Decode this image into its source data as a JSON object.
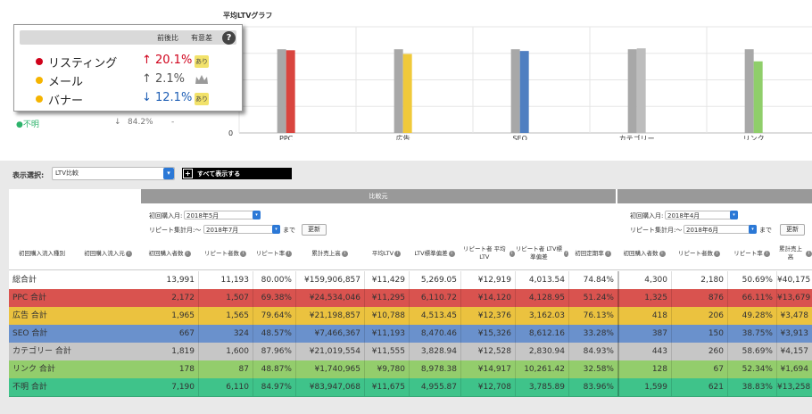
{
  "graph": {
    "title": "平均LTVグラフ",
    "y_ticks": [
      "0"
    ],
    "categories": [
      "PPC",
      "広告",
      "SEO",
      "カテゴリー",
      "リンク"
    ]
  },
  "chart_data": {
    "type": "bar",
    "categories": [
      "PPC",
      "広告",
      "SEO",
      "カテゴリー",
      "リンク"
    ],
    "series": [
      {
        "values": [
          11429,
          11429,
          11429,
          11429,
          11429
        ]
      },
      {
        "values": [
          11295,
          10788,
          11193,
          11555,
          9780
        ]
      }
    ],
    "bar_colors": [
      "#d9453f",
      "#f0c93a",
      "#4f7fc1",
      "#bdbdbd",
      "#8fce6a"
    ],
    "base_color": "#a8a8a8",
    "ylim": [
      0,
      14500
    ],
    "grid": true
  },
  "popup": {
    "col_prev": "前後比",
    "col_sig": "有意差",
    "help": "?",
    "rows": [
      {
        "label": "リスティング",
        "arrow": "↑",
        "value": "20.1%",
        "value_color": "#d0021b",
        "dot": "#d0021b",
        "badge": "あり",
        "icon": "crown-gold-icon"
      },
      {
        "label": "メール",
        "arrow": "↑",
        "value": "2.1%",
        "value_color": "#555555",
        "dot": "#f5b400",
        "badge": "",
        "icon": "crown-grey-icon"
      },
      {
        "label": "バナー",
        "arrow": "↓",
        "value": "12.1%",
        "value_color": "#1f5fb5",
        "dot": "#f5b400",
        "badge": "あり",
        "icon": "crown-gold-icon"
      }
    ]
  },
  "below_popup": {
    "label": "●不明",
    "arrow": "↓",
    "value": "84.2%",
    "sig": "-",
    "dot_color": "#2db36b"
  },
  "toolbar": {
    "label": "表示選択:",
    "select_value": "LTV比較",
    "show_all": "すべて表示する",
    "plus": "+"
  },
  "compare": {
    "header": "比較元",
    "first_purchase_label": "初回購入月:",
    "first_purchase_value": "2018年5月",
    "repeat_label": "リピート集計月:〜",
    "repeat_value": "2018年7月",
    "made": "まで",
    "update": "更新"
  },
  "compare2": {
    "first_purchase_label": "初回購入月:",
    "first_purchase_value": "2018年4月",
    "repeat_label": "リピート集計月:〜",
    "repeat_value": "2018年6月",
    "made": "まで",
    "update": "更新"
  },
  "columns": [
    {
      "label": "初回購入流入種別",
      "info": false
    },
    {
      "label": "初回購入流入元",
      "info": true
    },
    {
      "label": "初回購入者数",
      "info": true
    },
    {
      "label": "リピート者数",
      "info": true
    },
    {
      "label": "リピート率",
      "info": true
    },
    {
      "label": "累計売上高",
      "info": true
    },
    {
      "label": "平均LTV",
      "info": true
    },
    {
      "label": "LTV標準偏差",
      "info": true
    },
    {
      "label": "リピート者 平均LTV",
      "info": true
    },
    {
      "label": "リピート者 LTV標準偏差",
      "info": true
    },
    {
      "label": "初回定期率",
      "info": true
    },
    {
      "label": "初回購入者数",
      "info": true
    },
    {
      "label": "リピート者数",
      "info": true
    },
    {
      "label": "リピート率",
      "info": true
    },
    {
      "label": "累計売上高",
      "info": true
    }
  ],
  "rows": [
    {
      "label": "総合計",
      "color": "#ffffff",
      "values": [
        "13,991",
        "11,193",
        "80.00%",
        "¥159,906,857",
        "¥11,429",
        "5,269.05",
        "¥12,919",
        "4,013.54",
        "74.84%",
        "4,300",
        "2,180",
        "50.69%",
        "¥40,175"
      ]
    },
    {
      "label": "PPC 合計",
      "color": "#d9534f",
      "values": [
        "2,172",
        "1,507",
        "69.38%",
        "¥24,534,046",
        "¥11,295",
        "6,110.72",
        "¥14,120",
        "4,128.95",
        "51.24%",
        "1,325",
        "876",
        "66.11%",
        "¥13,679"
      ]
    },
    {
      "label": "広告 合計",
      "color": "#ebc23f",
      "values": [
        "1,965",
        "1,565",
        "79.64%",
        "¥21,198,857",
        "¥10,788",
        "4,513.45",
        "¥12,376",
        "3,162.03",
        "76.13%",
        "418",
        "206",
        "49.28%",
        "¥3,478"
      ]
    },
    {
      "label": "SEO 合計",
      "color": "#6a91cc",
      "values": [
        "667",
        "324",
        "48.57%",
        "¥7,466,367",
        "¥11,193",
        "8,470.46",
        "¥15,326",
        "8,612.16",
        "33.28%",
        "387",
        "150",
        "38.75%",
        "¥3,913"
      ]
    },
    {
      "label": "カテゴリー 合計",
      "color": "#c6c6c6",
      "values": [
        "1,819",
        "1,600",
        "87.96%",
        "¥21,019,554",
        "¥11,555",
        "3,828.94",
        "¥12,528",
        "2,830.94",
        "84.93%",
        "443",
        "260",
        "58.69%",
        "¥4,157"
      ]
    },
    {
      "label": "リンク 合計",
      "color": "#93cd6c",
      "values": [
        "178",
        "87",
        "48.87%",
        "¥1,740,965",
        "¥9,780",
        "8,978.38",
        "¥14,917",
        "10,261.42",
        "32.58%",
        "128",
        "67",
        "52.34%",
        "¥1,694"
      ]
    },
    {
      "label": "不明 合計",
      "color": "#3fc38a",
      "values": [
        "7,190",
        "6,110",
        "84.97%",
        "¥83,947,068",
        "¥11,675",
        "4,955.87",
        "¥12,708",
        "3,785.89",
        "83.96%",
        "1,599",
        "621",
        "38.83%",
        "¥13,258"
      ]
    }
  ]
}
